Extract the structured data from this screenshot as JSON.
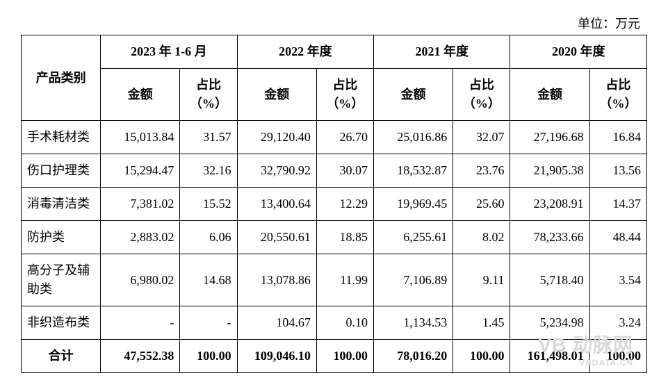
{
  "unit_label": "单位：万元",
  "header": {
    "category": "产品类别",
    "periods": [
      "2023 年 1-6 月",
      "2022 年度",
      "2021 年度",
      "2020 年度"
    ],
    "amount": "金额",
    "percent": "占比（%）"
  },
  "rows": [
    {
      "cat": "手术耗材类",
      "v": [
        "15,013.84",
        "31.57",
        "29,120.40",
        "26.70",
        "25,016.86",
        "32.07",
        "27,196.68",
        "16.84"
      ]
    },
    {
      "cat": "伤口护理类",
      "v": [
        "15,294.47",
        "32.16",
        "32,790.92",
        "30.07",
        "18,532.87",
        "23.76",
        "21,905.38",
        "13.56"
      ]
    },
    {
      "cat": "消毒清洁类",
      "v": [
        "7,381.02",
        "15.52",
        "13,400.64",
        "12.29",
        "19,969.45",
        "25.60",
        "23,208.91",
        "14.37"
      ]
    },
    {
      "cat": "防护类",
      "v": [
        "2,883.02",
        "6.06",
        "20,550.61",
        "18.85",
        "6,255.61",
        "8.02",
        "78,233.66",
        "48.44"
      ]
    },
    {
      "cat": "高分子及辅助类",
      "v": [
        "6,980.02",
        "14.68",
        "13,078.86",
        "11.99",
        "7,106.89",
        "9.11",
        "5,718.40",
        "3.54"
      ]
    },
    {
      "cat": "非织造布类",
      "v": [
        "-",
        "-",
        "104.67",
        "0.10",
        "1,134.53",
        "1.45",
        "5,234.98",
        "3.24"
      ]
    }
  ],
  "total": {
    "cat": "合计",
    "v": [
      "47,552.38",
      "100.00",
      "109,046.10",
      "100.00",
      "78,016.20",
      "100.00",
      "161,498.01",
      "100.00"
    ]
  },
  "watermark": {
    "main": "VB 动脉网",
    "sub": "VBDATA.CN"
  },
  "style": {
    "font_family": "SimSun",
    "font_size_pt": 18,
    "border_color": "#000000",
    "background_color": "#ffffff",
    "text_color": "#000000",
    "watermark_color": "#d8d8d8"
  }
}
